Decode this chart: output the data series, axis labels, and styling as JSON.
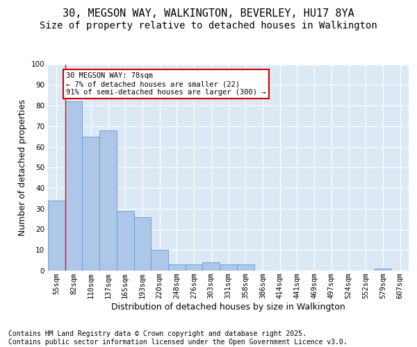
{
  "title_line1": "30, MEGSON WAY, WALKINGTON, BEVERLEY, HU17 8YA",
  "title_line2": "Size of property relative to detached houses in Walkington",
  "xlabel": "Distribution of detached houses by size in Walkington",
  "ylabel": "Number of detached properties",
  "categories": [
    "55sqm",
    "82sqm",
    "110sqm",
    "137sqm",
    "165sqm",
    "193sqm",
    "220sqm",
    "248sqm",
    "276sqm",
    "303sqm",
    "331sqm",
    "358sqm",
    "386sqm",
    "414sqm",
    "441sqm",
    "469sqm",
    "497sqm",
    "524sqm",
    "552sqm",
    "579sqm",
    "607sqm"
  ],
  "values": [
    34,
    82,
    65,
    68,
    29,
    26,
    10,
    3,
    3,
    4,
    3,
    3,
    0,
    0,
    0,
    0,
    0,
    0,
    0,
    1,
    0
  ],
  "bar_color": "#aec6e8",
  "bar_edge_color": "#5b9bd5",
  "annotation_text": "30 MEGSON WAY: 78sqm\n← 7% of detached houses are smaller (22)\n91% of semi-detached houses are larger (300) →",
  "annotation_box_color": "#ffffff",
  "annotation_box_edge": "#cc0000",
  "redline_x": 0.5,
  "ylim": [
    0,
    100
  ],
  "yticks": [
    0,
    10,
    20,
    30,
    40,
    50,
    60,
    70,
    80,
    90,
    100
  ],
  "footer_line1": "Contains HM Land Registry data © Crown copyright and database right 2025.",
  "footer_line2": "Contains public sector information licensed under the Open Government Licence v3.0.",
  "bg_color": "#dce9f5",
  "plot_bg_color": "#dce9f5",
  "fig_bg_color": "#ffffff",
  "title_fontsize": 11,
  "subtitle_fontsize": 10,
  "tick_fontsize": 7.5,
  "label_fontsize": 9,
  "footer_fontsize": 7
}
